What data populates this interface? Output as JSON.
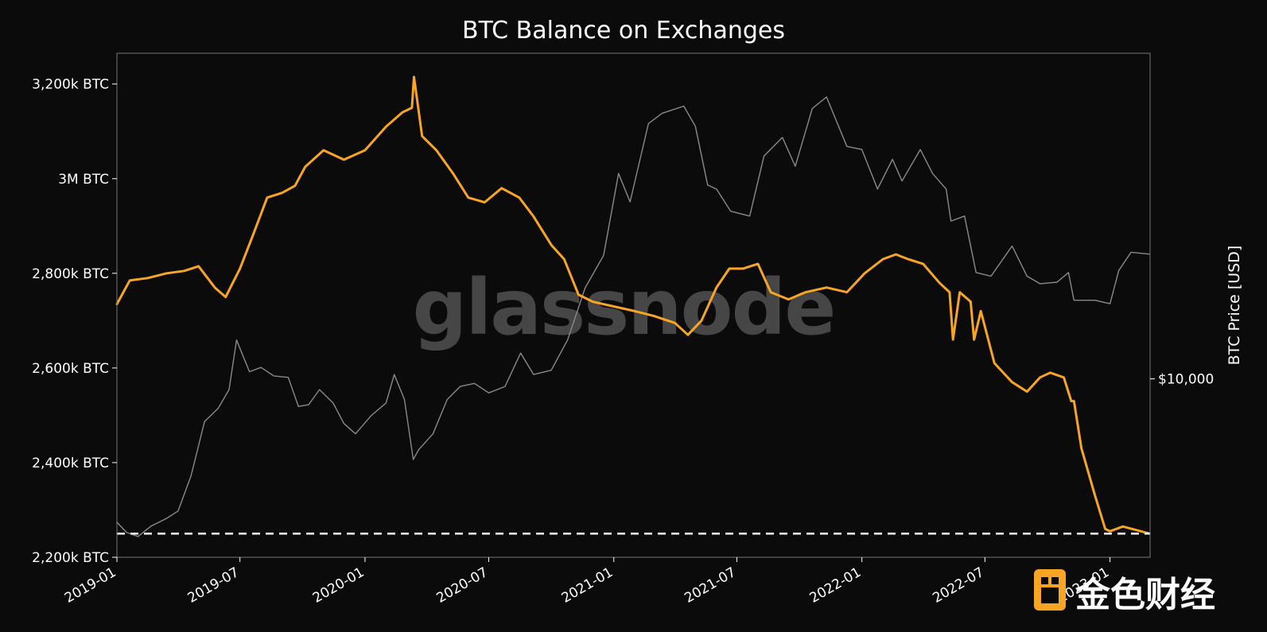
{
  "chart_data": {
    "type": "line",
    "title": "BTC Balance on Exchanges",
    "x_ticks": [
      "2019-01",
      "2019-07",
      "2020-01",
      "2020-07",
      "2021-01",
      "2021-07",
      "2022-01",
      "2022-07",
      "2023-01"
    ],
    "xlim": [
      "2019-01",
      "2023-03"
    ],
    "y_left_ticks": [
      {
        "value": 2200,
        "label": "2,200k BTC"
      },
      {
        "value": 2400,
        "label": "2,400k BTC"
      },
      {
        "value": 2600,
        "label": "2,600k BTC"
      },
      {
        "value": 2800,
        "label": "2,800k BTC"
      },
      {
        "value": 3000,
        "label": "3M BTC"
      },
      {
        "value": 3200,
        "label": "3,200k BTC"
      }
    ],
    "y_left_unit": "k BTC",
    "y_left_range": [
      2200,
      3265
    ],
    "y_right_label": "BTC Price [USD]",
    "y_right_ticks": [
      {
        "value": 10000,
        "label": "$10,000"
      }
    ],
    "y_right_scale": "log",
    "y_right_range": [
      3000,
      90000
    ],
    "reference_line": {
      "value": 2250,
      "style": "dashed",
      "color": "#ffffff"
    },
    "watermark": "glassnode",
    "series": [
      {
        "name": "",
        "axis": "left",
        "color": "#f7a522",
        "x": [
          "2019-01-01",
          "2019-01-20",
          "2019-02-15",
          "2019-03-15",
          "2019-04-10",
          "2019-05-01",
          "2019-05-25",
          "2019-06-10",
          "2019-07-01",
          "2019-07-20",
          "2019-08-10",
          "2019-09-01",
          "2019-09-20",
          "2019-10-05",
          "2019-11-01",
          "2019-12-01",
          "2020-01-01",
          "2020-02-01",
          "2020-02-25",
          "2020-03-10",
          "2020-03-13",
          "2020-03-25",
          "2020-04-15",
          "2020-05-10",
          "2020-06-01",
          "2020-06-25",
          "2020-07-20",
          "2020-08-15",
          "2020-09-05",
          "2020-10-01",
          "2020-10-20",
          "2020-11-10",
          "2020-12-01",
          "2021-01-01",
          "2021-02-01",
          "2021-03-01",
          "2021-04-01",
          "2021-04-20",
          "2021-05-10",
          "2021-06-01",
          "2021-06-20",
          "2021-07-10",
          "2021-08-01",
          "2021-08-20",
          "2021-09-15",
          "2021-10-10",
          "2021-11-10",
          "2021-12-10",
          "2022-01-05",
          "2022-02-01",
          "2022-02-20",
          "2022-03-10",
          "2022-04-01",
          "2022-04-25",
          "2022-05-10",
          "2022-05-15",
          "2022-05-25",
          "2022-06-10",
          "2022-06-15",
          "2022-06-25",
          "2022-07-15",
          "2022-08-10",
          "2022-09-01",
          "2022-09-20",
          "2022-10-05",
          "2022-10-25",
          "2022-11-05",
          "2022-11-09",
          "2022-11-20",
          "2022-12-10",
          "2022-12-25",
          "2023-01-01",
          "2023-01-20",
          "2023-02-10",
          "2023-02-28"
        ],
        "values": [
          2735,
          2785,
          2790,
          2800,
          2805,
          2815,
          2770,
          2750,
          2810,
          2880,
          2960,
          2970,
          2985,
          3025,
          3060,
          3040,
          3060,
          3110,
          3140,
          3150,
          3215,
          3090,
          3060,
          3010,
          2960,
          2950,
          2980,
          2960,
          2920,
          2860,
          2830,
          2755,
          2740,
          2730,
          2720,
          2710,
          2695,
          2670,
          2700,
          2770,
          2810,
          2810,
          2820,
          2760,
          2745,
          2760,
          2770,
          2760,
          2800,
          2830,
          2840,
          2830,
          2820,
          2780,
          2760,
          2660,
          2760,
          2740,
          2660,
          2720,
          2610,
          2570,
          2550,
          2580,
          2590,
          2580,
          2530,
          2530,
          2430,
          2330,
          2260,
          2255,
          2265,
          2257,
          2250
        ]
      },
      {
        "name": "",
        "axis": "right",
        "color": "#8a8a8a",
        "x": [
          "2019-01-01",
          "2019-01-15",
          "2019-02-01",
          "2019-02-20",
          "2019-03-15",
          "2019-04-01",
          "2019-04-20",
          "2019-05-10",
          "2019-05-30",
          "2019-06-15",
          "2019-06-26",
          "2019-07-15",
          "2019-08-01",
          "2019-08-20",
          "2019-09-10",
          "2019-09-25",
          "2019-10-10",
          "2019-10-26",
          "2019-11-15",
          "2019-12-01",
          "2019-12-18",
          "2020-01-10",
          "2020-02-01",
          "2020-02-13",
          "2020-02-28",
          "2020-03-12",
          "2020-03-20",
          "2020-04-10",
          "2020-05-01",
          "2020-05-20",
          "2020-06-10",
          "2020-07-01",
          "2020-07-25",
          "2020-08-17",
          "2020-09-05",
          "2020-10-01",
          "2020-10-25",
          "2020-11-20",
          "2020-12-17",
          "2021-01-08",
          "2021-01-25",
          "2021-02-21",
          "2021-03-13",
          "2021-04-14",
          "2021-05-01",
          "2021-05-19",
          "2021-06-01",
          "2021-06-22",
          "2021-07-20",
          "2021-08-10",
          "2021-09-06",
          "2021-09-25",
          "2021-10-20",
          "2021-11-10",
          "2021-12-10",
          "2022-01-01",
          "2022-01-24",
          "2022-02-15",
          "2022-03-01",
          "2022-03-28",
          "2022-04-15",
          "2022-05-05",
          "2022-05-12",
          "2022-06-01",
          "2022-06-18",
          "2022-07-10",
          "2022-08-10",
          "2022-09-01",
          "2022-09-20",
          "2022-10-15",
          "2022-11-01",
          "2022-11-09",
          "2022-12-10",
          "2023-01-01",
          "2023-01-14",
          "2023-02-01",
          "2023-02-28"
        ],
        "values": [
          3800,
          3550,
          3450,
          3700,
          3900,
          4100,
          5200,
          7500,
          8200,
          9300,
          13000,
          10500,
          10800,
          10200,
          10100,
          8300,
          8400,
          9300,
          8500,
          7400,
          6900,
          7800,
          8500,
          10300,
          8700,
          5800,
          6200,
          6900,
          8700,
          9500,
          9700,
          9100,
          9500,
          11900,
          10300,
          10600,
          13000,
          18500,
          23000,
          40000,
          33000,
          56000,
          60000,
          63000,
          55000,
          37000,
          36000,
          31000,
          30000,
          45000,
          51000,
          42000,
          62000,
          67000,
          48000,
          47000,
          36000,
          44000,
          38000,
          47000,
          40000,
          36000,
          29000,
          30000,
          20500,
          20000,
          24500,
          20000,
          19000,
          19200,
          20500,
          17000,
          17000,
          16600,
          20800,
          23500,
          23200
        ]
      }
    ]
  },
  "logo": {
    "text": "金色财经",
    "accent": "#f7a522"
  },
  "colors": {
    "background": "#0b0b0b",
    "balance_line": "#f7a522",
    "price_line": "#8a8a8a",
    "text": "#ffffff",
    "frame": "#777777",
    "watermark": "#5a5a5a"
  }
}
